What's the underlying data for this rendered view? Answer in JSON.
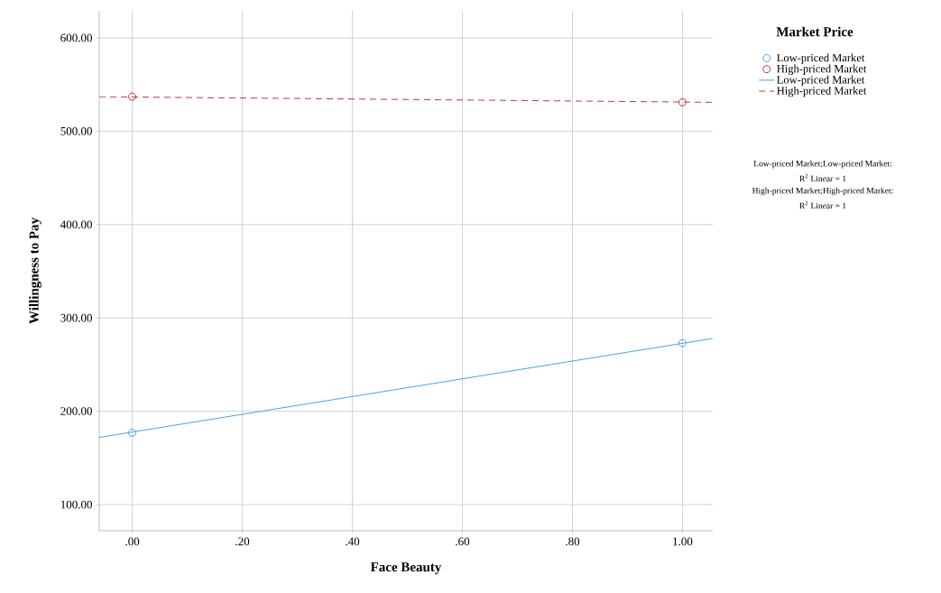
{
  "chart_data": {
    "type": "scatter",
    "xlabel": "Face Beauty",
    "ylabel": "Willingness to Pay",
    "legend_title": "Market Price",
    "series": [
      {
        "name": "Low-priced Market",
        "color": "#3399e6",
        "marker": "circle",
        "x": [
          0,
          1
        ],
        "values": [
          177,
          273
        ]
      },
      {
        "name": "High-priced Market",
        "color": "#b22222",
        "marker": "circle",
        "x": [
          0,
          1
        ],
        "values": [
          537,
          531
        ]
      },
      {
        "name": "Low-priced Market",
        "type": "line",
        "color": "#3399e6",
        "marker": "none",
        "line_style": "solid",
        "x": [
          -0.06,
          1.055
        ],
        "values": [
          172,
          278
        ]
      },
      {
        "name": "High-priced Market",
        "type": "line",
        "color": "#b22222",
        "marker": "none",
        "line_style": "dashed",
        "x": [
          -0.06,
          1.055
        ],
        "values": [
          537,
          531
        ]
      }
    ],
    "xlim": [
      -0.06,
      1.055
    ],
    "ylim": [
      72,
      629
    ],
    "xticks": [
      {
        "value": 0,
        "label": ".00"
      },
      {
        "value": 0.2,
        "label": ".20"
      },
      {
        "value": 0.4,
        "label": ".40"
      },
      {
        "value": 0.6,
        "label": ".60"
      },
      {
        "value": 0.8,
        "label": ".80"
      },
      {
        "value": 1,
        "label": "1.00"
      }
    ],
    "yticks": [
      {
        "value": 100,
        "label": "100.00"
      },
      {
        "value": 200,
        "label": "200.00"
      },
      {
        "value": 300,
        "label": "300.00"
      },
      {
        "value": 400,
        "label": "400.00"
      },
      {
        "value": 500,
        "label": "500.00"
      },
      {
        "value": 600,
        "label": "600.00"
      }
    ],
    "grid": true,
    "legend": "top right",
    "annotations": [
      "Low-priced Market;Low-priced Market:",
      "R$^{2}$ Linear = 1",
      "High-priced Market;High-priced Market:",
      "R$^{2}$ Linear = 1"
    ]
  }
}
